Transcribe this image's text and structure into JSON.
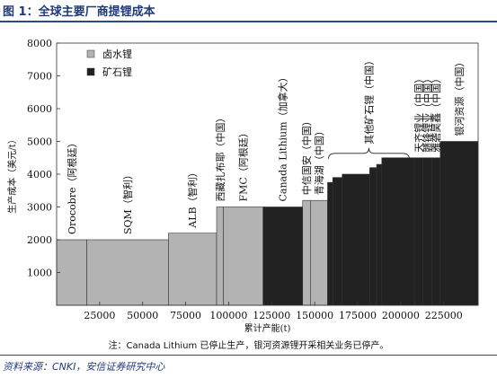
{
  "figure": {
    "title": "图 1：全球主要厂商提锂成本",
    "note": "注：Canada Lithium 已停止生产，银河资源锂开采相关业务已停产。",
    "source": "资料来源：CNKI，安信证券研究中心"
  },
  "chart_data": {
    "type": "bar",
    "subtype": "cost-curve",
    "title": "",
    "xlabel": "累计产能(t)",
    "ylabel": "生产成本（美元/t）",
    "xlim": [
      0,
      245000
    ],
    "ylim": [
      0,
      8000
    ],
    "xticks": [
      25000,
      50000,
      75000,
      100000,
      125000,
      150000,
      175000,
      200000,
      225000
    ],
    "yticks": [
      1000,
      2000,
      3000,
      4000,
      5000,
      6000,
      7000,
      8000
    ],
    "grid": false,
    "legend_position": "top-left",
    "legend": [
      {
        "name": "卤水锂",
        "color": "#b3b3b3"
      },
      {
        "name": "矿石锂",
        "color": "#222222"
      }
    ],
    "bars": [
      {
        "label": "Orocobre（阿根廷）",
        "type": "卤水锂",
        "x0": 0,
        "x1": 17500,
        "value": 2000
      },
      {
        "label": "SQM（智利）",
        "type": "卤水锂",
        "x0": 17500,
        "x1": 65000,
        "value": 2000
      },
      {
        "label": "ALB（智利）",
        "type": "卤水锂",
        "x0": 65000,
        "x1": 93000,
        "value": 2200
      },
      {
        "label": "西藏扎布耶（中国）",
        "type": "卤水锂",
        "x0": 93000,
        "x1": 97000,
        "value": 3000
      },
      {
        "label": "FMC（阿根廷）",
        "type": "卤水锂",
        "x0": 97000,
        "x1": 120000,
        "value": 3000
      },
      {
        "label": "Canada Lithium（加拿大）",
        "type": "矿石锂",
        "x0": 120000,
        "x1": 143000,
        "value": 3000
      },
      {
        "label": "中信国安（中国）",
        "type": "卤水锂",
        "x0": 143000,
        "x1": 147500,
        "value": 3200
      },
      {
        "label": "青海湖（中国）",
        "type": "卤水锂",
        "x0": 147500,
        "x1": 157500,
        "value": 3200
      },
      {
        "label": "",
        "type": "矿石锂",
        "x0": 157500,
        "x1": 160500,
        "value": 3750
      },
      {
        "label": "",
        "type": "矿石锂",
        "x0": 160500,
        "x1": 166000,
        "value": 3900
      },
      {
        "label": "",
        "type": "矿石锂",
        "x0": 166000,
        "x1": 182000,
        "value": 4000
      },
      {
        "label": "",
        "type": "矿石锂",
        "x0": 182000,
        "x1": 186000,
        "value": 4200
      },
      {
        "label": "",
        "type": "矿石锂",
        "x0": 186000,
        "x1": 189000,
        "value": 4300
      },
      {
        "label": "",
        "type": "矿石锂",
        "x0": 189000,
        "x1": 208000,
        "value": 4500
      },
      {
        "label": "天齐锂业（中国）",
        "type": "矿石锂",
        "x0": 208000,
        "x1": 213000,
        "value": 4500
      },
      {
        "label": "赣锋锂业（中国）",
        "type": "矿石锂",
        "x0": 213000,
        "x1": 218000,
        "value": 4500
      },
      {
        "label": "雅砻昊鑫（中国）",
        "type": "矿石锂",
        "x0": 218000,
        "x1": 223000,
        "value": 4500
      },
      {
        "label": "银河资源（中国）",
        "type": "矿石锂",
        "x0": 223000,
        "x1": 245000,
        "value": 5000
      }
    ],
    "annotations": [
      {
        "text": "其他矿石锂（中国）",
        "bracket_x": [
          158000,
          205000
        ],
        "value": 4800
      }
    ]
  }
}
